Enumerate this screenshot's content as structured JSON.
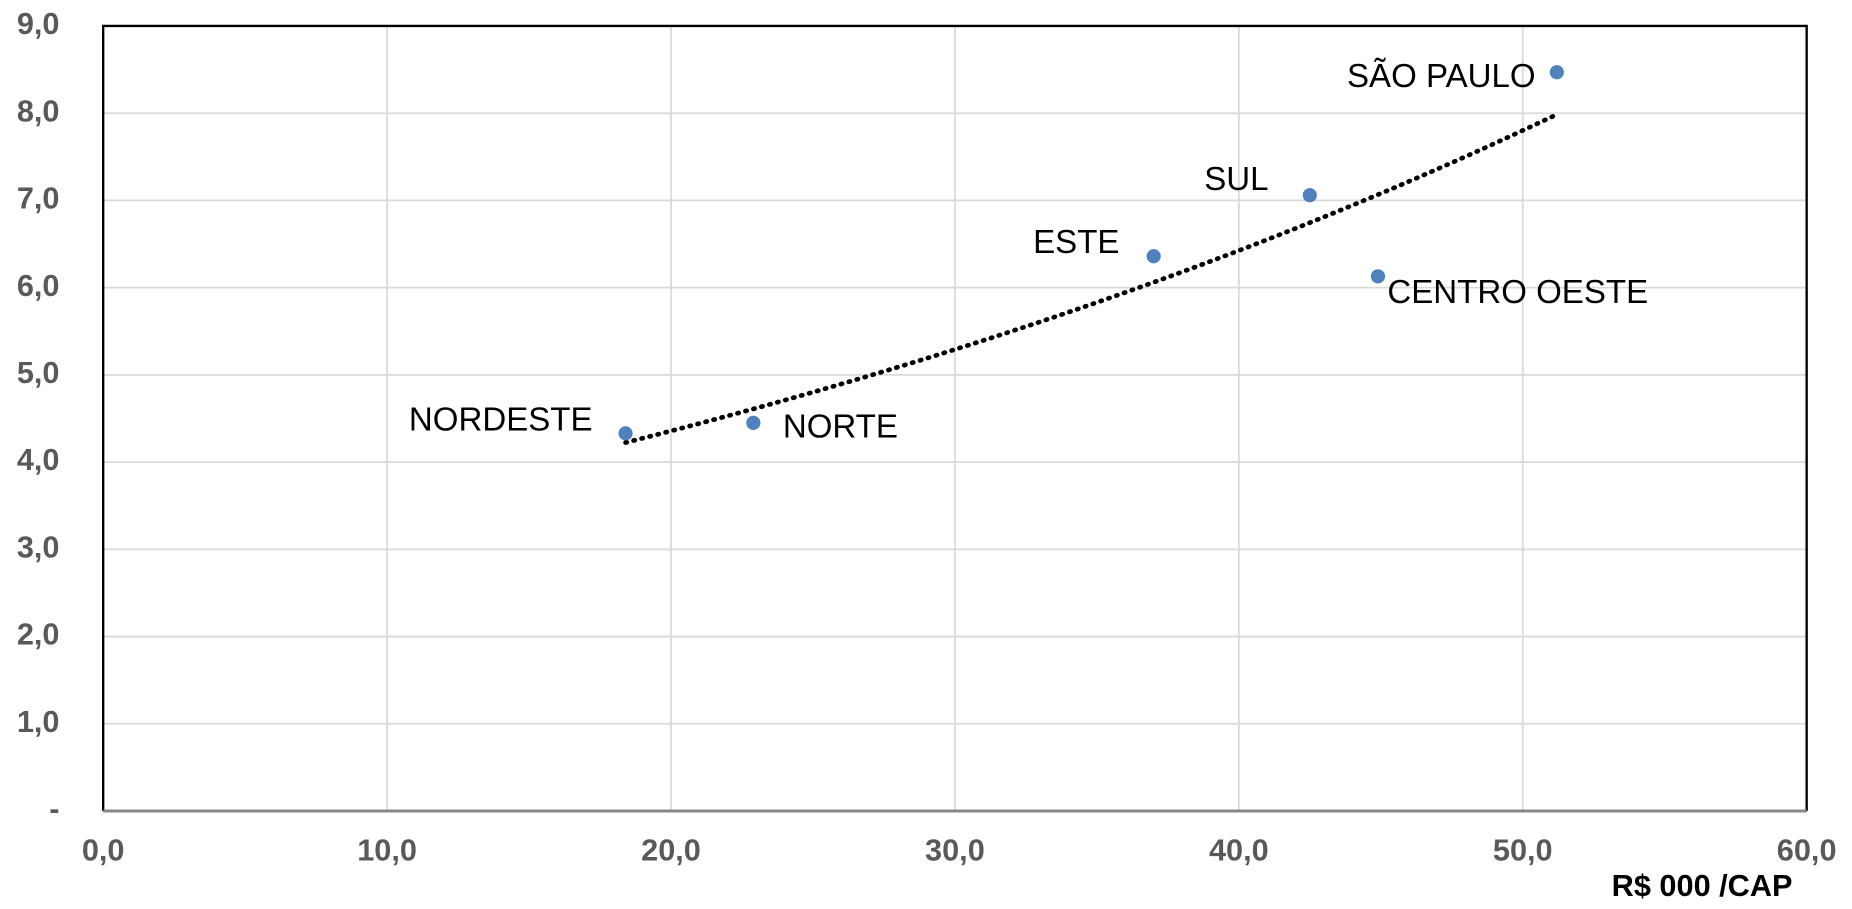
{
  "chart_data": {
    "type": "scatter",
    "labels": [
      "NORDESTE",
      "NORTE",
      "ESTE",
      "SUL",
      "CENTRO OESTE",
      "SÃO PAULO"
    ],
    "x": [
      18.4,
      22.9,
      37.0,
      42.5,
      44.9,
      51.2
    ],
    "values": [
      4.33,
      4.45,
      6.36,
      7.06,
      6.13,
      8.47
    ],
    "color": "#4f81bd",
    "trendline": "exponential",
    "x_label": "R$ 000 /CAP",
    "xlim": [
      0,
      60
    ],
    "xticks": [
      {
        "value": 0,
        "label": "0,0"
      },
      {
        "value": 10,
        "label": "10,0"
      },
      {
        "value": 20,
        "label": "20,0"
      },
      {
        "value": 30,
        "label": "30,0"
      },
      {
        "value": 40,
        "label": "40,0"
      },
      {
        "value": 50,
        "label": "50,0"
      },
      {
        "value": 60,
        "label": "60,0"
      }
    ],
    "ylim": [
      0,
      9
    ],
    "yticks": [
      {
        "value": 0,
        "label": "-"
      },
      {
        "value": 1,
        "label": "1,0"
      },
      {
        "value": 2,
        "label": "2,0"
      },
      {
        "value": 3,
        "label": "3,0"
      },
      {
        "value": 4,
        "label": "4,0"
      },
      {
        "value": 5,
        "label": "5,0"
      },
      {
        "value": 6,
        "label": "6,0"
      },
      {
        "value": 7,
        "label": "7,0"
      },
      {
        "value": 8,
        "label": "8,0"
      },
      {
        "value": 9,
        "label": "9,0"
      }
    ],
    "grid": true
  }
}
